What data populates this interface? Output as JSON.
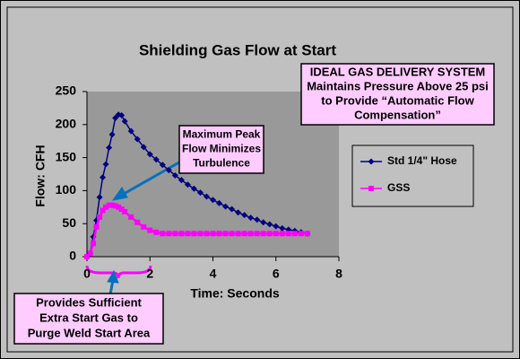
{
  "chart_data": {
    "type": "line",
    "title": "Shielding Gas Flow at Start",
    "x_label": "Time:  Seconds",
    "y_label": "Flow: CFH",
    "x": [
      0,
      0.1,
      0.2,
      0.3,
      0.4,
      0.5,
      0.6,
      0.7,
      0.8,
      0.9,
      1.0,
      1.1,
      1.2,
      1.4,
      1.6,
      1.8,
      2.0,
      2.2,
      2.4,
      2.6,
      2.8,
      3.0,
      3.2,
      3.4,
      3.6,
      3.8,
      4.0,
      4.2,
      4.4,
      4.6,
      4.8,
      5.0,
      5.2,
      5.4,
      5.6,
      5.8,
      6.0,
      6.2,
      6.4,
      6.6,
      6.8,
      7.0
    ],
    "series": [
      {
        "name": "Std 1/4\" Hose",
        "color": "#000080",
        "marker": "diamond",
        "values": [
          0,
          5,
          30,
          55,
          90,
          120,
          140,
          165,
          185,
          210,
          215,
          214,
          205,
          190,
          178,
          166,
          155,
          147,
          139,
          131,
          123,
          116,
          109,
          103,
          97,
          91,
          86,
          81,
          76,
          72,
          67,
          63,
          59,
          56,
          52,
          49,
          46,
          43,
          41,
          39,
          37,
          35
        ]
      },
      {
        "name": "GSS",
        "color": "#ff00ff",
        "marker": "square",
        "values": [
          0,
          5,
          20,
          45,
          60,
          70,
          75,
          78,
          78,
          77,
          75,
          72,
          68,
          60,
          52,
          45,
          40,
          37,
          35,
          35,
          35,
          35,
          35,
          35,
          35,
          35,
          35,
          35,
          35,
          35,
          35,
          35,
          35,
          35,
          35,
          35,
          35,
          35,
          35,
          35,
          35,
          35
        ]
      }
    ],
    "xlim": [
      0,
      8
    ],
    "xticks": [
      0,
      2,
      4,
      6,
      8
    ],
    "ylim": [
      0,
      250
    ],
    "yticks": [
      0,
      50,
      100,
      150,
      200,
      250
    ],
    "grid": false,
    "legend": "right",
    "annotations": [
      {
        "lines": [
          "IDEAL GAS DELIVERY SYSTEM",
          "Maintains Pressure Above 25 psi",
          "to Provide “Automatic Flow",
          "Compensation”"
        ]
      },
      {
        "lines": [
          "Maximum Peak",
          "Flow Minimizes",
          "Turbulence"
        ]
      },
      {
        "lines": [
          "Provides Sufficient",
          "Extra Start Gas to",
          "Purge Weld Start Area"
        ]
      }
    ]
  }
}
